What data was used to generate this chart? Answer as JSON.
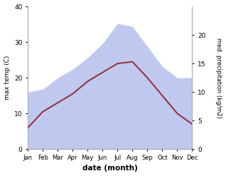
{
  "months": [
    "Jan",
    "Feb",
    "Mar",
    "Apr",
    "May",
    "Jun",
    "Jul",
    "Aug",
    "Sep",
    "Oct",
    "Nov",
    "Dec"
  ],
  "temp": [
    6.0,
    10.5,
    13.0,
    15.5,
    19.0,
    21.5,
    24.0,
    24.5,
    20.0,
    15.0,
    10.0,
    7.0
  ],
  "precip": [
    10.0,
    10.5,
    12.5,
    14.0,
    16.0,
    18.5,
    22.0,
    21.5,
    18.0,
    14.5,
    12.5,
    12.5
  ],
  "temp_color": "#993344",
  "precip_fill_color": "#bfc9ef",
  "ylabel_left": "max temp (C)",
  "ylabel_right": "med. precipitation (kg/m2)",
  "xlabel": "date (month)",
  "ylim_left": [
    0,
    40
  ],
  "ylim_right": [
    0,
    25
  ],
  "bg_color": "#ffffff"
}
